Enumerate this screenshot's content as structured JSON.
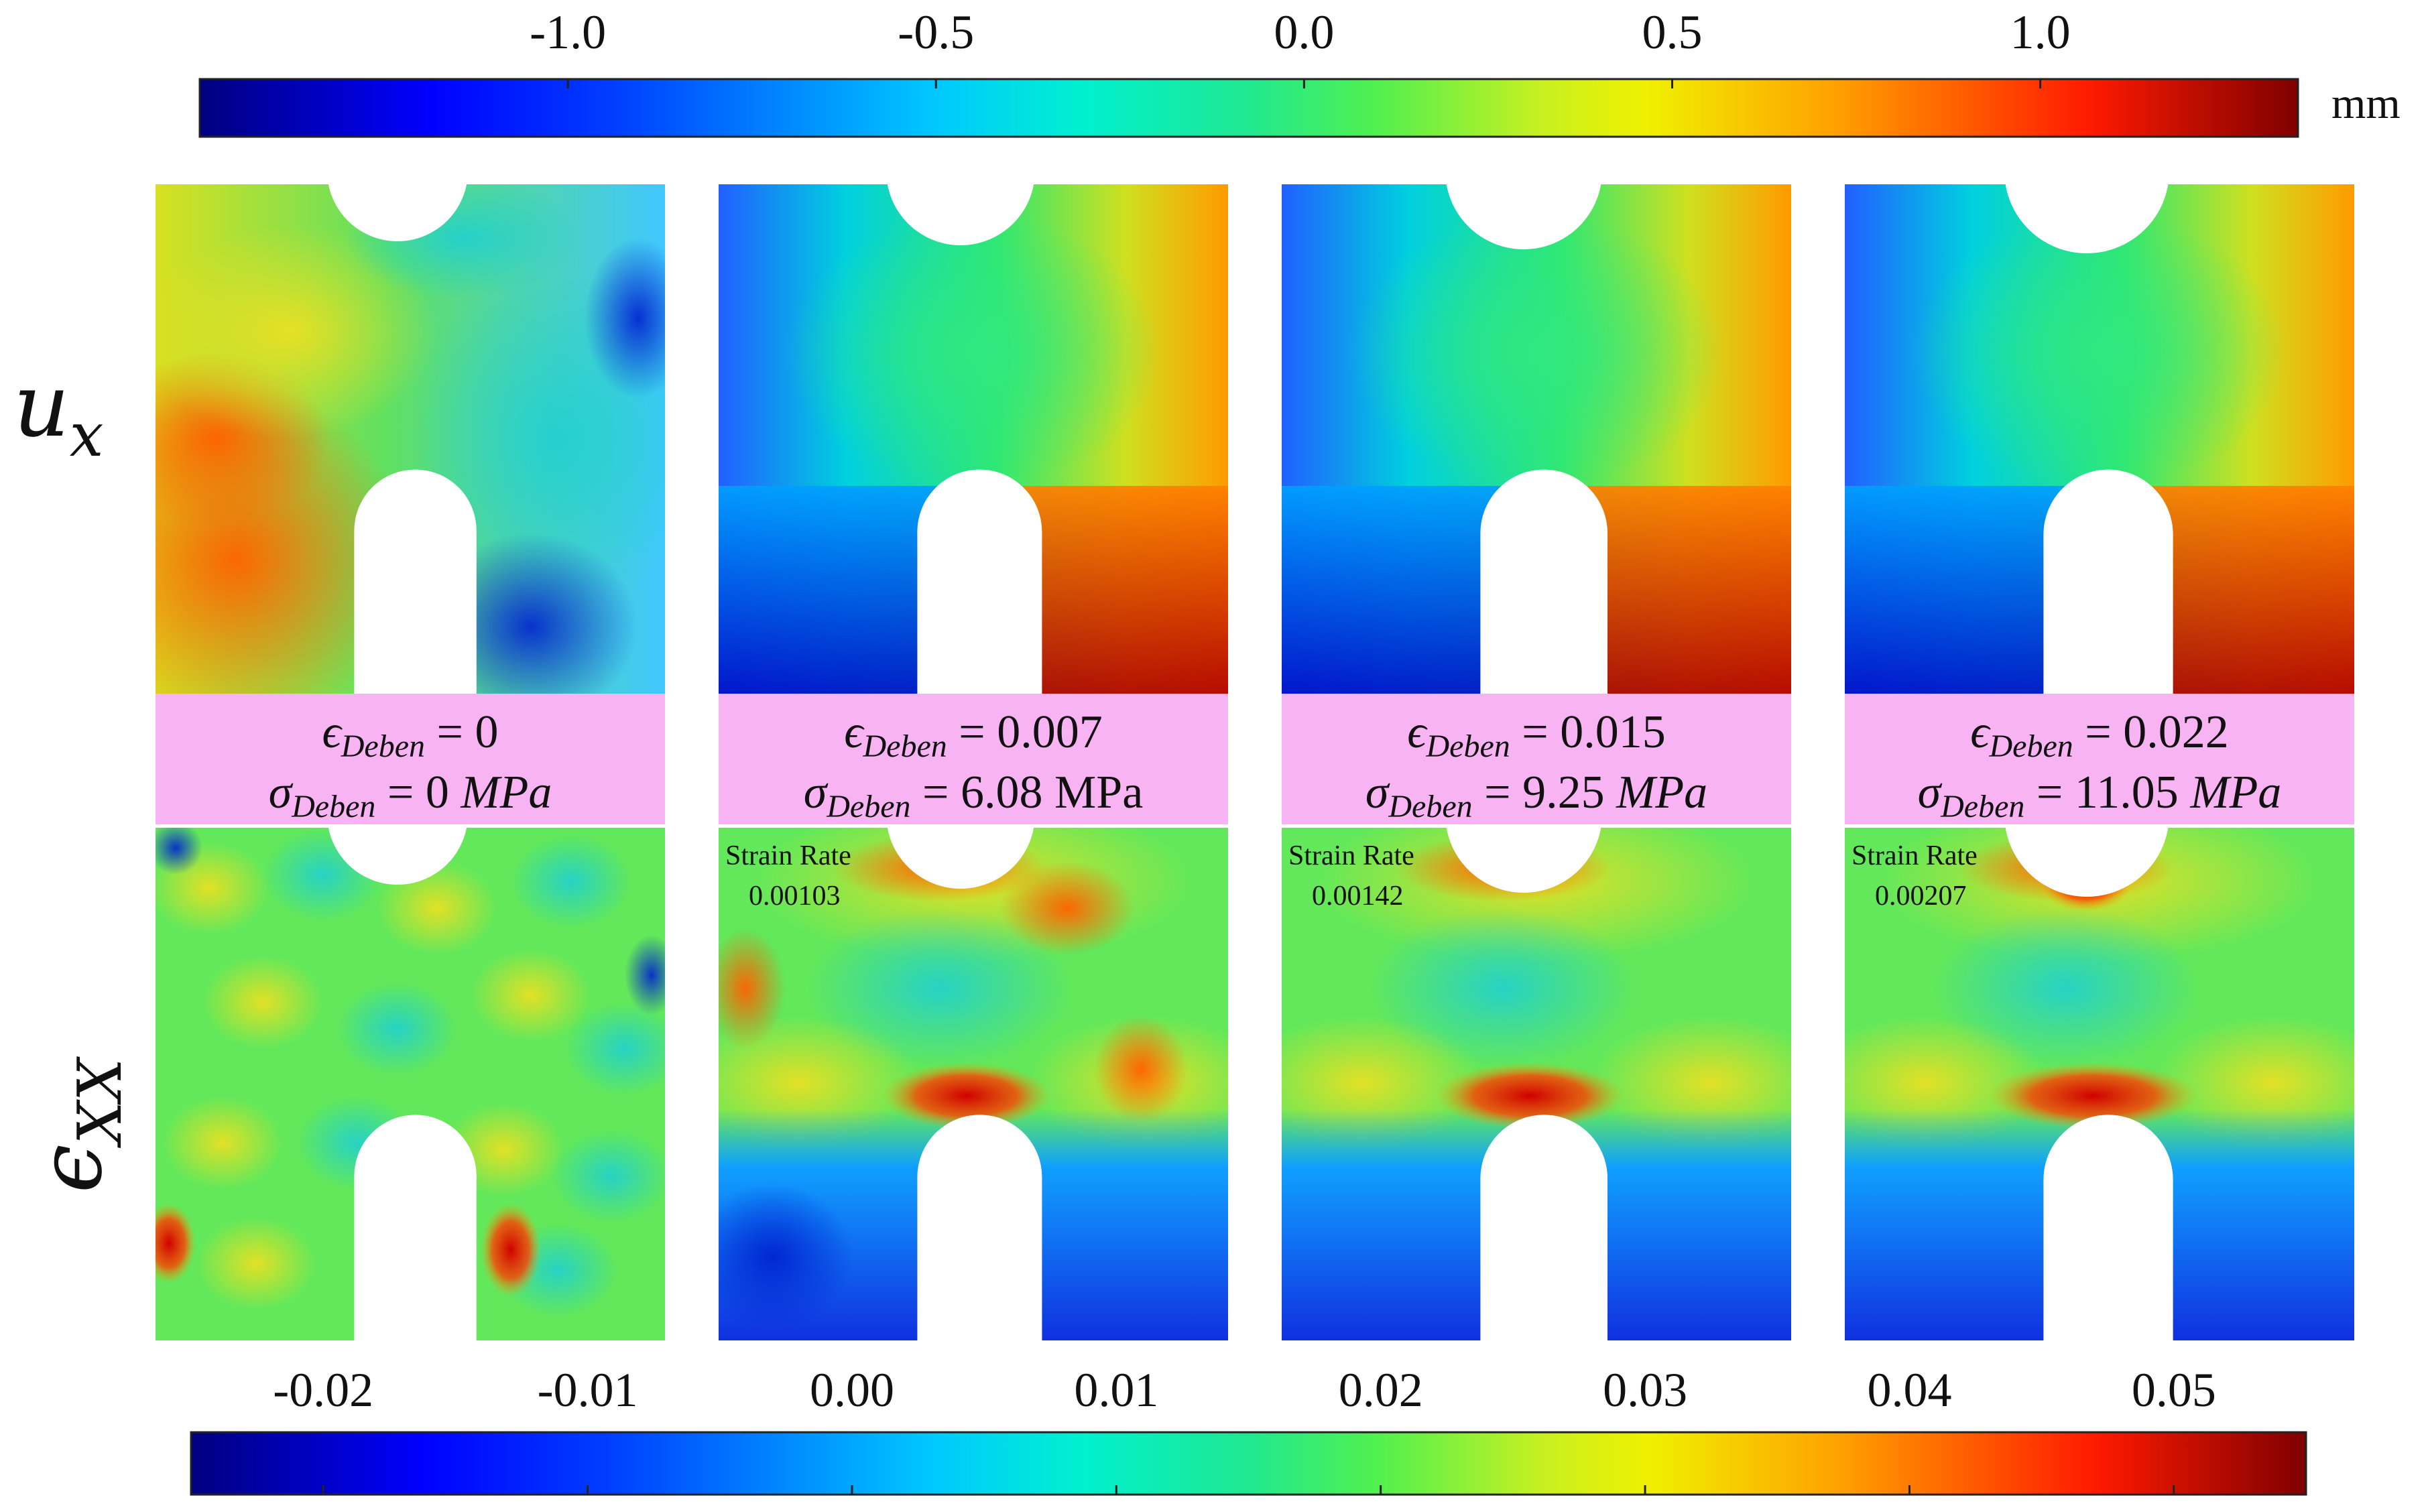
{
  "figure": {
    "top_colorbar": {
      "ticks": [
        "-1.0",
        "-0.5",
        "0.0",
        "0.5",
        "1.0"
      ],
      "unit": "mm",
      "range": [
        -1.5,
        1.35
      ]
    },
    "bottom_colorbar": {
      "ticks": [
        "-0.02",
        "-0.01",
        "0.00",
        "0.01",
        "0.02",
        "0.03",
        "0.04",
        "0.05"
      ],
      "range": [
        -0.025,
        0.055
      ]
    },
    "row_labels": {
      "top_base": "u",
      "top_sub": "x",
      "bottom_base": "ϵ",
      "bottom_sub": "XX"
    },
    "panels": [
      {
        "eps_sym": "ϵ",
        "eps_sub": "Deben",
        "eps_val": " = 0",
        "sig_sym": "σ",
        "sig_sub": "Deben",
        "sig_val": " = 0 ",
        "sig_unit": "MPa",
        "unit_italic": true,
        "rate_label": "",
        "rate_value": ""
      },
      {
        "eps_sym": "ϵ",
        "eps_sub": "Deben",
        "eps_val": " = 0.007",
        "sig_sym": "σ",
        "sig_sub": "Deben",
        "sig_val": " = 6.08 ",
        "sig_unit": "MPa",
        "unit_italic": false,
        "rate_label": "Strain Rate",
        "rate_value": "0.00103"
      },
      {
        "eps_sym": "ϵ",
        "eps_sub": "Deben",
        "eps_val": " = 0.015",
        "sig_sym": "σ",
        "sig_sub": "Deben",
        "sig_val": " = 9.25 ",
        "sig_unit": "MPa",
        "unit_italic": true,
        "rate_label": "Strain Rate",
        "rate_value": "0.00142"
      },
      {
        "eps_sym": "ϵ",
        "eps_sub": "Deben",
        "eps_val": " = 0.022",
        "sig_sym": "σ",
        "sig_sub": "Deben",
        "sig_val": " = 11.05 ",
        "sig_unit": "MPa",
        "unit_italic": true,
        "rate_label": "Strain Rate",
        "rate_value": "0.00207"
      }
    ]
  }
}
